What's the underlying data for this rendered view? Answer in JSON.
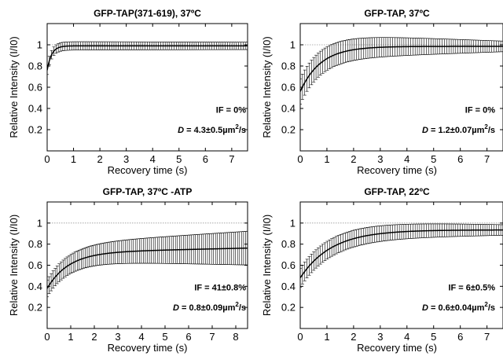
{
  "chart_data": [
    {
      "type": "line",
      "title": "GFP-TAP(371-619), 37ºC",
      "xlabel": "Recovery time (s)",
      "ylabel": "Relative Intensity (I/I0)",
      "xlim": [
        0,
        7.6
      ],
      "ylim": [
        0,
        1.2
      ],
      "xticks": [
        0,
        1,
        2,
        3,
        4,
        5,
        6,
        7
      ],
      "yticks": [
        0.2,
        0.4,
        0.6,
        0.8,
        1
      ],
      "reference_line": 1,
      "model": {
        "t_max": 7.6,
        "plateau": 0.99,
        "start": 0.76,
        "rate": 6.0,
        "error_start": 0.04,
        "error_end": 0.035,
        "error_bar_count": 90
      },
      "annotations": {
        "if": {
          "prefix": "IF = ",
          "value": "0%"
        },
        "d": {
          "prefix": "D",
          "value": " = 4.3±0.5µm",
          "sup": "2",
          "suffix": "/s"
        }
      }
    },
    {
      "type": "line",
      "title": "GFP-TAP, 37ºC",
      "xlabel": "Recovery time (s)",
      "ylabel": "Relative Intensity (I/I0)",
      "xlim": [
        0,
        7.6
      ],
      "ylim": [
        0,
        1.2
      ],
      "xticks": [
        0,
        1,
        2,
        3,
        4,
        5,
        6,
        7
      ],
      "yticks": [
        0.2,
        0.4,
        0.6,
        0.8,
        1
      ],
      "reference_line": 1,
      "model": {
        "t_max": 7.6,
        "plateau": 0.985,
        "start": 0.56,
        "rate": 1.3,
        "error_start": 0.12,
        "error_end": 0.05,
        "error_bar_count": 90
      },
      "annotations": {
        "if": {
          "prefix": "IF = ",
          "value": "0%"
        },
        "d": {
          "prefix": "D",
          "value": " = 1.2±0.07µm",
          "sup": "2",
          "suffix": "/s"
        }
      }
    },
    {
      "type": "line",
      "title": "GFP-TAP, 37ºC -ATP",
      "xlabel": "Recovery time (s)",
      "ylabel": "Relative Intensity (I/I0)",
      "xlim": [
        0,
        8.5
      ],
      "ylim": [
        0,
        1.2
      ],
      "xticks": [
        0,
        1,
        2,
        3,
        4,
        5,
        6,
        7,
        8
      ],
      "yticks": [
        0.2,
        0.4,
        0.6,
        0.8,
        1
      ],
      "reference_line": 1,
      "model": {
        "t_max": 8.5,
        "plateau": 0.72,
        "start": 0.38,
        "rate": 1.1,
        "slope": 0.005,
        "error_start": 0.08,
        "error_end": 0.16,
        "error_bar_count": 100
      },
      "annotations": {
        "if": {
          "prefix": "IF = ",
          "value": "41±0.8%"
        },
        "d": {
          "prefix": "D",
          "value": " = 0.8±0.09µm",
          "sup": "2",
          "suffix": "/s"
        }
      }
    },
    {
      "type": "line",
      "title": "GFP-TAP, 22ºC",
      "xlabel": "Recovery time (s)",
      "ylabel": "Relative Intensity (I/I0)",
      "xlim": [
        0,
        7.6
      ],
      "ylim": [
        0,
        1.2
      ],
      "xticks": [
        0,
        1,
        2,
        3,
        4,
        5,
        6,
        7
      ],
      "yticks": [
        0.2,
        0.4,
        0.6,
        0.8,
        1
      ],
      "reference_line": 1,
      "model": {
        "t_max": 7.6,
        "plateau": 0.935,
        "start": 0.48,
        "rate": 0.85,
        "error_start": 0.09,
        "error_end": 0.05,
        "error_bar_count": 90
      },
      "annotations": {
        "if": {
          "prefix": "IF = ",
          "value": "6±0.5%"
        },
        "d": {
          "prefix": "D",
          "value": " = 0.6±0.04µm",
          "sup": "2",
          "suffix": "/s"
        }
      }
    }
  ]
}
